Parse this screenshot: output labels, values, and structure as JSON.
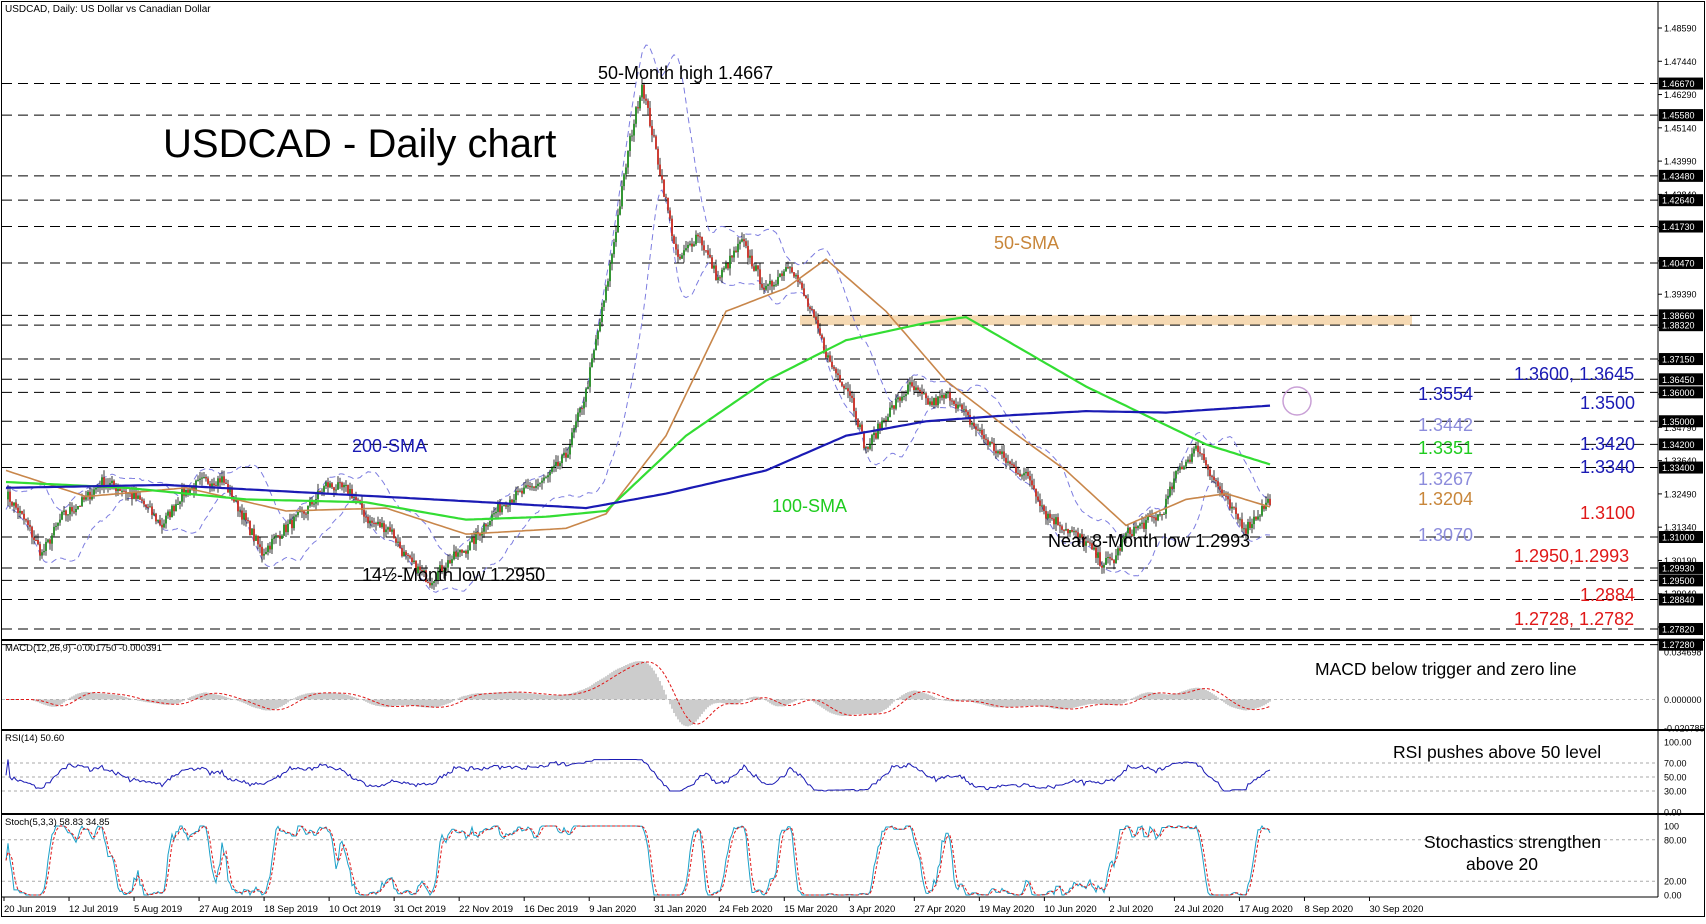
{
  "header": {
    "main_caption": "USDCAD, Daily:  US Dollar vs Canadian Dollar",
    "macd_caption": "MACD(12,26,9) -0.001750 -0.000391",
    "rsi_caption": "RSI(14) 50.60",
    "stoch_caption": "Stoch(5,3,3) 58.83 34.85"
  },
  "colors": {
    "candle_up": "#1f8a1f",
    "candle_down": "#c8281e",
    "sma50": "#c8864a",
    "sma100": "#33dd33",
    "sma200": "#1a1ab4",
    "bollinger": "#7d7de0",
    "zone": "#f3d2a6",
    "annotation_blue": "#1a1ab4",
    "annotation_green": "#1fcc1f",
    "annotation_red": "#e01818",
    "annotation_lavender": "#8c8cdc",
    "annotation_orange": "#c8863a",
    "rsi_line": "#1a1ab4",
    "stoch_main": "#1aa0c8",
    "stoch_signal": "#e01818",
    "macd_hist": "#999999",
    "macd_signal": "#e01818"
  },
  "chart_data": [
    {
      "id": "price",
      "type": "candlestick",
      "title": "USDCAD - Daily chart",
      "ylim": [
        1.2728,
        1.4858
      ],
      "right_axis_ticks": [
        "1.48590",
        "1.47440",
        "1.46290",
        "1.45140",
        "1.43990",
        "1.42840",
        "1.41690",
        "1.40540",
        "1.39390",
        "1.38240",
        "1.37090",
        "1.35940",
        "1.34790",
        "1.33640",
        "1.32490",
        "1.31340",
        "1.30190",
        "1.29040",
        "1.27890"
      ],
      "right_axis_highlight": [
        "1.46670",
        "1.45580",
        "1.43480",
        "1.42640",
        "1.41730",
        "1.40470",
        "1.38660",
        "1.38320",
        "1.37150",
        "1.36450",
        "1.36000",
        "1.35000",
        "1.34200",
        "1.33400",
        "1.31000",
        "1.29930",
        "1.29500",
        "1.28840",
        "1.27820",
        "1.27280"
      ],
      "horizontal_levels": [
        1.4667,
        1.4558,
        1.4348,
        1.4264,
        1.4173,
        1.4047,
        1.3866,
        1.3832,
        1.3715,
        1.3645,
        1.36,
        1.35,
        1.342,
        1.334,
        1.31,
        1.2993,
        1.295,
        1.2884,
        1.2782,
        1.2728
      ],
      "resistance_zone": [
        1.3832,
        1.3866
      ],
      "x_labels": [
        "20 Jun 2019",
        "12 Jul 2019",
        "5 Aug 2019",
        "27 Aug 2019",
        "18 Sep 2019",
        "10 Oct 2019",
        "31 Oct 2019",
        "22 Nov 2019",
        "16 Dec 2019",
        "9 Jan 2020",
        "31 Jan 2020",
        "24 Feb 2020",
        "15 Mar 2020",
        "3 Apr 2020",
        "27 Apr 2020",
        "19 May 2020",
        "10 Jun 2020",
        "2 Jul 2020",
        "24 Jul 2020",
        "17 Aug 2020",
        "8 Sep 2020",
        "30 Sep 2020"
      ],
      "close_path": [
        [
          0,
          1.325
        ],
        [
          10,
          1.315
        ],
        [
          18,
          1.304
        ],
        [
          28,
          1.317
        ],
        [
          38,
          1.322
        ],
        [
          48,
          1.329
        ],
        [
          58,
          1.3265
        ],
        [
          68,
          1.322
        ],
        [
          78,
          1.314
        ],
        [
          88,
          1.325
        ],
        [
          98,
          1.329
        ],
        [
          108,
          1.33
        ],
        [
          118,
          1.318
        ],
        [
          128,
          1.3045
        ],
        [
          138,
          1.312
        ],
        [
          150,
          1.319
        ],
        [
          160,
          1.328
        ],
        [
          172,
          1.326
        ],
        [
          182,
          1.315
        ],
        [
          192,
          1.313
        ],
        [
          200,
          1.3025
        ],
        [
          212,
          1.295
        ],
        [
          222,
          1.302
        ],
        [
          232,
          1.307
        ],
        [
          240,
          1.315
        ],
        [
          250,
          1.3225
        ],
        [
          260,
          1.326
        ],
        [
          270,
          1.33
        ],
        [
          280,
          1.338
        ],
        [
          290,
          1.36
        ],
        [
          300,
          1.395
        ],
        [
          312,
          1.447
        ],
        [
          318,
          1.4667
        ],
        [
          326,
          1.44
        ],
        [
          336,
          1.405
        ],
        [
          346,
          1.415
        ],
        [
          356,
          1.399
        ],
        [
          368,
          1.412
        ],
        [
          380,
          1.395
        ],
        [
          392,
          1.405
        ],
        [
          404,
          1.385
        ],
        [
          412,
          1.37
        ],
        [
          422,
          1.36
        ],
        [
          430,
          1.34
        ],
        [
          440,
          1.352
        ],
        [
          452,
          1.362
        ],
        [
          462,
          1.356
        ],
        [
          472,
          1.359
        ],
        [
          482,
          1.35
        ],
        [
          492,
          1.342
        ],
        [
          502,
          1.335
        ],
        [
          512,
          1.33
        ],
        [
          520,
          1.318
        ],
        [
          530,
          1.313
        ],
        [
          540,
          1.308
        ],
        [
          548,
          1.301
        ],
        [
          554,
          1.302
        ],
        [
          560,
          1.311
        ],
        [
          570,
          1.315
        ],
        [
          578,
          1.318
        ],
        [
          586,
          1.333
        ],
        [
          596,
          1.341
        ],
        [
          604,
          1.33
        ],
        [
          612,
          1.32
        ],
        [
          620,
          1.313
        ],
        [
          626,
          1.318
        ],
        [
          632,
          1.323
        ]
      ],
      "series": [
        {
          "name": "50-SMA",
          "values": [
            [
              0,
              1.333
            ],
            [
              40,
              1.324
            ],
            [
              90,
              1.327
            ],
            [
              140,
              1.319
            ],
            [
              190,
              1.32
            ],
            [
              230,
              1.311
            ],
            [
              280,
              1.313
            ],
            [
              300,
              1.318
            ],
            [
              330,
              1.345
            ],
            [
              360,
              1.388
            ],
            [
              390,
              1.396
            ],
            [
              410,
              1.406
            ],
            [
              440,
              1.388
            ],
            [
              470,
              1.364
            ],
            [
              500,
              1.348
            ],
            [
              530,
              1.333
            ],
            [
              560,
              1.314
            ],
            [
              590,
              1.323
            ],
            [
              610,
              1.325
            ],
            [
              632,
              1.3204
            ]
          ]
        },
        {
          "name": "100-SMA",
          "values": [
            [
              0,
              1.329
            ],
            [
              60,
              1.327
            ],
            [
              120,
              1.323
            ],
            [
              180,
              1.322
            ],
            [
              230,
              1.316
            ],
            [
              270,
              1.317
            ],
            [
              300,
              1.319
            ],
            [
              340,
              1.345
            ],
            [
              380,
              1.364
            ],
            [
              420,
              1.378
            ],
            [
              460,
              1.384
            ],
            [
              480,
              1.386
            ],
            [
              500,
              1.378
            ],
            [
              540,
              1.362
            ],
            [
              570,
              1.352
            ],
            [
              600,
              1.342
            ],
            [
              632,
              1.3351
            ]
          ]
        },
        {
          "name": "200-SMA",
          "values": [
            [
              0,
              1.327
            ],
            [
              80,
              1.328
            ],
            [
              160,
              1.325
            ],
            [
              240,
              1.322
            ],
            [
              290,
              1.32
            ],
            [
              330,
              1.325
            ],
            [
              380,
              1.333
            ],
            [
              420,
              1.345
            ],
            [
              460,
              1.35
            ],
            [
              500,
              1.352
            ],
            [
              540,
              1.3535
            ],
            [
              580,
              1.353
            ],
            [
              632,
              1.3554
            ]
          ]
        }
      ],
      "annotations": [
        {
          "text": "50-Month high 1.4667",
          "color": "#000000"
        },
        {
          "text": "200-SMA",
          "color": "#1a1ab4"
        },
        {
          "text": "50-SMA",
          "color": "#c8863a"
        },
        {
          "text": "100-SMA",
          "color": "#1fcc1f"
        },
        {
          "text": "14½-Month low 1.2950",
          "color": "#000000"
        },
        {
          "text": "Near 8-Month low 1.2993",
          "color": "#000000"
        },
        {
          "text": "1.3554",
          "color": "#1a1ab4"
        },
        {
          "text": "1.3442",
          "color": "#8c8cdc"
        },
        {
          "text": "1.3351",
          "color": "#1fcc1f"
        },
        {
          "text": "1.3267",
          "color": "#8c8cdc"
        },
        {
          "text": "1.3204",
          "color": "#c8863a"
        },
        {
          "text": "1.3070",
          "color": "#8c8cdc"
        },
        {
          "text": "1.3600, 1.3645",
          "color": "#1a1ab4"
        },
        {
          "text": "1.3500",
          "color": "#1a1ab4"
        },
        {
          "text": "1.3420",
          "color": "#1a1ab4"
        },
        {
          "text": "1.3340",
          "color": "#1a1ab4"
        },
        {
          "text": "1.3100",
          "color": "#e01818"
        },
        {
          "text": "1.2950,1.2993",
          "color": "#e01818"
        },
        {
          "text": "1.2884",
          "color": "#e01818"
        },
        {
          "text": "1.2728, 1.2782",
          "color": "#e01818"
        }
      ]
    },
    {
      "id": "macd",
      "type": "bar",
      "title": "MACD below trigger and zero line",
      "ylim": [
        -0.0208,
        0.0347
      ],
      "axis_ticks": [
        "0.034698",
        "0.000000",
        "-0.020785"
      ]
    },
    {
      "id": "rsi",
      "type": "line",
      "title": "RSI pushes above 50 level",
      "ylim": [
        0,
        100
      ],
      "axis_ticks": [
        "100.00",
        "70.00",
        "50.00",
        "30.00",
        "0.00"
      ],
      "levels": [
        70,
        50,
        30
      ],
      "last_value": 50.6
    },
    {
      "id": "stochastic",
      "type": "line",
      "title": "Stochastics strengthen above 20",
      "ylim": [
        0,
        100
      ],
      "axis_ticks": [
        "100",
        "80.00",
        "20.00",
        "0.00"
      ],
      "levels": [
        80,
        20
      ],
      "last_main": 58.83,
      "last_signal": 34.85
    }
  ]
}
